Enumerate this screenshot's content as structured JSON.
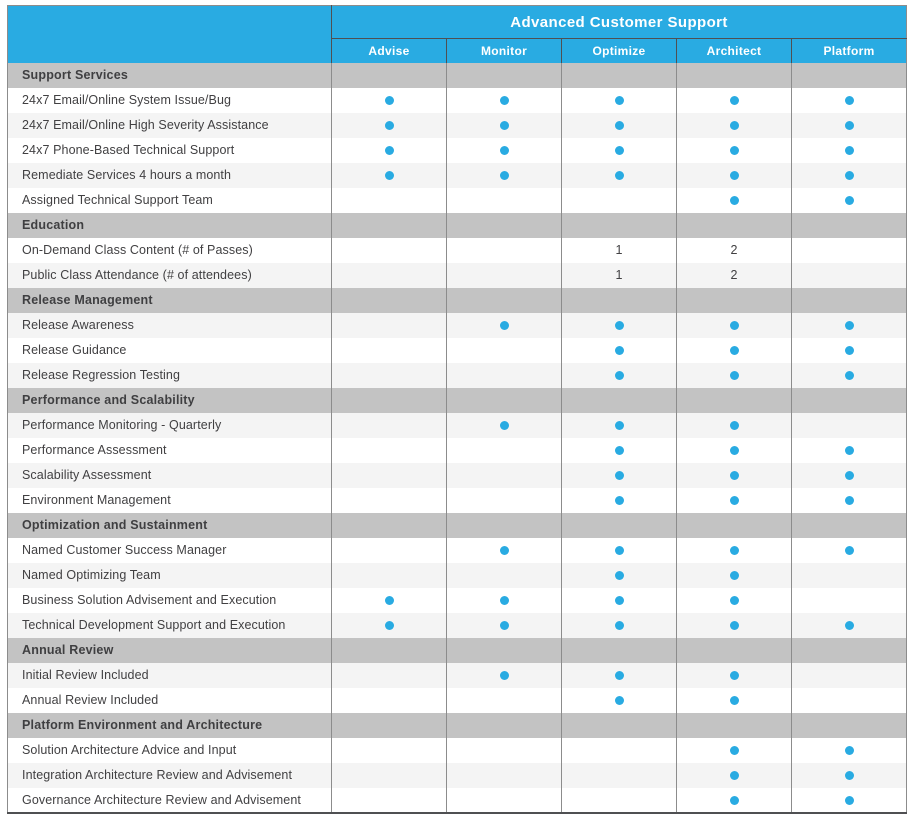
{
  "chart_data": {
    "type": "table",
    "title": "Advanced Customer Support",
    "columns": [
      "Advise",
      "Monitor",
      "Optimize",
      "Architect",
      "Platform"
    ],
    "sections": [
      {
        "title": "Support Services",
        "rows": [
          {
            "label": "24x7 Email/Online System Issue/Bug",
            "cells": [
              "dot",
              "dot",
              "dot",
              "dot",
              "dot"
            ]
          },
          {
            "label": "24x7 Email/Online High Severity Assistance",
            "cells": [
              "dot",
              "dot",
              "dot",
              "dot",
              "dot"
            ]
          },
          {
            "label": "24x7 Phone-Based Technical Support",
            "cells": [
              "dot",
              "dot",
              "dot",
              "dot",
              "dot"
            ]
          },
          {
            "label": "Remediate Services 4 hours a month",
            "cells": [
              "dot",
              "dot",
              "dot",
              "dot",
              "dot"
            ]
          },
          {
            "label": "Assigned Technical Support Team",
            "cells": [
              "",
              "",
              "",
              "dot",
              "dot"
            ]
          }
        ]
      },
      {
        "title": "Education",
        "rows": [
          {
            "label": "On-Demand Class Content (# of Passes)",
            "cells": [
              "",
              "",
              "1",
              "2",
              ""
            ]
          },
          {
            "label": "Public Class Attendance (# of attendees)",
            "cells": [
              "",
              "",
              "1",
              "2",
              ""
            ]
          }
        ]
      },
      {
        "title": "Release Management",
        "rows": [
          {
            "label": "Release Awareness",
            "cells": [
              "",
              "dot",
              "dot",
              "dot",
              "dot"
            ]
          },
          {
            "label": "Release Guidance",
            "cells": [
              "",
              "",
              "dot",
              "dot",
              "dot"
            ]
          },
          {
            "label": "Release Regression Testing",
            "cells": [
              "",
              "",
              "dot",
              "dot",
              "dot"
            ]
          }
        ]
      },
      {
        "title": "Performance and Scalability",
        "rows": [
          {
            "label": "Performance Monitoring - Quarterly",
            "cells": [
              "",
              "dot",
              "dot",
              "dot",
              ""
            ]
          },
          {
            "label": "Performance Assessment",
            "cells": [
              "",
              "",
              "dot",
              "dot",
              "dot"
            ]
          },
          {
            "label": "Scalability Assessment",
            "cells": [
              "",
              "",
              "dot",
              "dot",
              "dot"
            ]
          },
          {
            "label": "Environment Management",
            "cells": [
              "",
              "",
              "dot",
              "dot",
              "dot"
            ]
          }
        ]
      },
      {
        "title": "Optimization and Sustainment",
        "rows": [
          {
            "label": "Named Customer Success Manager",
            "cells": [
              "",
              "dot",
              "dot",
              "dot",
              "dot"
            ]
          },
          {
            "label": "Named Optimizing Team",
            "cells": [
              "",
              "",
              "dot",
              "dot",
              ""
            ]
          },
          {
            "label": "Business Solution Advisement and Execution",
            "cells": [
              "dot",
              "dot",
              "dot",
              "dot",
              ""
            ]
          },
          {
            "label": "Technical Development Support and Execution",
            "cells": [
              "dot",
              "dot",
              "dot",
              "dot",
              "dot"
            ]
          }
        ]
      },
      {
        "title": "Annual Review",
        "rows": [
          {
            "label": "Initial Review Included",
            "cells": [
              "",
              "dot",
              "dot",
              "dot",
              ""
            ]
          },
          {
            "label": "Annual Review Included",
            "cells": [
              "",
              "",
              "dot",
              "dot",
              ""
            ]
          }
        ]
      },
      {
        "title": "Platform Environment and Architecture",
        "rows": [
          {
            "label": "Solution Architecture Advice and Input",
            "cells": [
              "",
              "",
              "",
              "dot",
              "dot"
            ]
          },
          {
            "label": "Integration Architecture Review and Advisement",
            "cells": [
              "",
              "",
              "",
              "dot",
              "dot"
            ]
          },
          {
            "label": "Governance Architecture Review and Advisement",
            "cells": [
              "",
              "",
              "",
              "dot",
              "dot"
            ]
          }
        ]
      }
    ]
  },
  "colors": {
    "header_blue": "#29abe2",
    "dot_blue": "#29abe2",
    "section_gray": "#c3c3c3",
    "stripe_gray": "#f4f4f4",
    "border_gray": "#8c8c8c",
    "dark_border": "#4f5052"
  }
}
